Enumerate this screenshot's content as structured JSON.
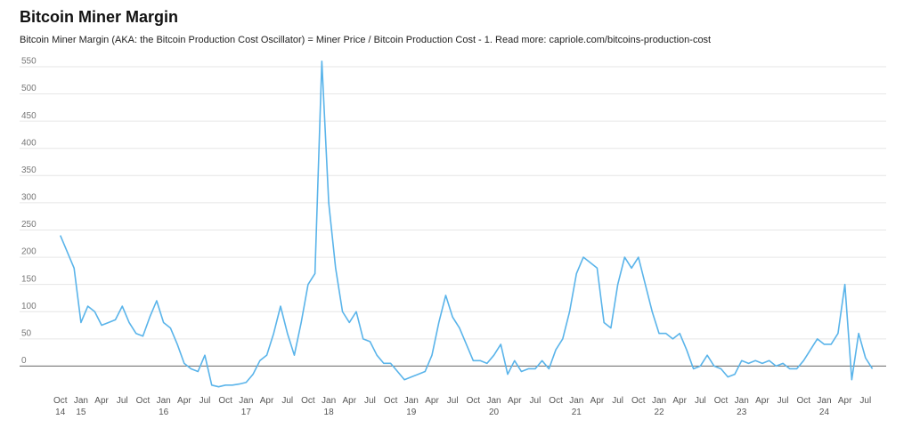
{
  "chart_data": {
    "type": "line",
    "title": "Bitcoin Miner Margin",
    "subtitle": "Bitcoin Miner Margin (AKA: the Bitcoin Production Cost Oscillator) = Miner Price / Bitcoin Production Cost - 1. Read more: capriole.com/bitcoins-production-cost",
    "x": [
      "2014-10",
      "2014-11",
      "2014-12",
      "2015-01",
      "2015-02",
      "2015-03",
      "2015-04",
      "2015-05",
      "2015-06",
      "2015-07",
      "2015-08",
      "2015-09",
      "2015-10",
      "2015-11",
      "2015-12",
      "2016-01",
      "2016-02",
      "2016-03",
      "2016-04",
      "2016-05",
      "2016-06",
      "2016-07",
      "2016-08",
      "2016-09",
      "2016-10",
      "2016-11",
      "2016-12",
      "2017-01",
      "2017-02",
      "2017-03",
      "2017-04",
      "2017-05",
      "2017-06",
      "2017-07",
      "2017-08",
      "2017-09",
      "2017-10",
      "2017-11",
      "2017-12",
      "2018-01",
      "2018-02",
      "2018-03",
      "2018-04",
      "2018-05",
      "2018-06",
      "2018-07",
      "2018-08",
      "2018-09",
      "2018-10",
      "2018-11",
      "2018-12",
      "2019-01",
      "2019-02",
      "2019-03",
      "2019-04",
      "2019-05",
      "2019-06",
      "2019-07",
      "2019-08",
      "2019-09",
      "2019-10",
      "2019-11",
      "2019-12",
      "2020-01",
      "2020-02",
      "2020-03",
      "2020-04",
      "2020-05",
      "2020-06",
      "2020-07",
      "2020-08",
      "2020-09",
      "2020-10",
      "2020-11",
      "2020-12",
      "2021-01",
      "2021-02",
      "2021-03",
      "2021-04",
      "2021-05",
      "2021-06",
      "2021-07",
      "2021-08",
      "2021-09",
      "2021-10",
      "2021-11",
      "2021-12",
      "2022-01",
      "2022-02",
      "2022-03",
      "2022-04",
      "2022-05",
      "2022-06",
      "2022-07",
      "2022-08",
      "2022-09",
      "2022-10",
      "2022-11",
      "2022-12",
      "2023-01",
      "2023-02",
      "2023-03",
      "2023-04",
      "2023-05",
      "2023-06",
      "2023-07",
      "2023-08",
      "2023-09",
      "2023-10",
      "2023-11",
      "2023-12",
      "2024-01",
      "2024-02",
      "2024-03",
      "2024-04",
      "2024-05",
      "2024-06",
      "2024-07",
      "2024-08"
    ],
    "series": [
      {
        "name": "Bitcoin Miner Margin",
        "color": "#5ab4ea",
        "values": [
          240,
          210,
          180,
          80,
          110,
          100,
          75,
          80,
          85,
          110,
          80,
          60,
          55,
          90,
          120,
          80,
          70,
          40,
          5,
          -5,
          -10,
          20,
          -35,
          -38,
          -35,
          -35,
          -33,
          -30,
          -15,
          10,
          20,
          60,
          110,
          60,
          20,
          80,
          150,
          170,
          560,
          300,
          180,
          100,
          80,
          100,
          50,
          45,
          20,
          5,
          5,
          -10,
          -25,
          -20,
          -15,
          -10,
          20,
          80,
          130,
          90,
          70,
          40,
          10,
          10,
          5,
          20,
          40,
          -15,
          10,
          -10,
          -5,
          -5,
          10,
          -5,
          30,
          50,
          100,
          170,
          200,
          190,
          180,
          80,
          70,
          150,
          200,
          180,
          200,
          150,
          100,
          60,
          60,
          50,
          60,
          30,
          -5,
          0,
          20,
          0,
          -5,
          -20,
          -15,
          10,
          5,
          10,
          5,
          10,
          0,
          5,
          -5,
          -5,
          10,
          30,
          50,
          40,
          40,
          60,
          150,
          -25,
          60,
          15,
          -5
        ]
      }
    ],
    "xlim": [
      "2014-09",
      "2024-10"
    ],
    "xticks": [
      {
        "value": "2014-10",
        "label": "Oct 14"
      },
      {
        "value": "2015-01",
        "label": "Jan 15"
      },
      {
        "value": "2015-04",
        "label": "Apr"
      },
      {
        "value": "2015-07",
        "label": "Jul"
      },
      {
        "value": "2015-10",
        "label": "Oct"
      },
      {
        "value": "2016-01",
        "label": "Jan 16"
      },
      {
        "value": "2016-04",
        "label": "Apr"
      },
      {
        "value": "2016-07",
        "label": "Jul"
      },
      {
        "value": "2016-10",
        "label": "Oct"
      },
      {
        "value": "2017-01",
        "label": "Jan 17"
      },
      {
        "value": "2017-04",
        "label": "Apr"
      },
      {
        "value": "2017-07",
        "label": "Jul"
      },
      {
        "value": "2017-10",
        "label": "Oct"
      },
      {
        "value": "2018-01",
        "label": "Jan 18"
      },
      {
        "value": "2018-04",
        "label": "Apr"
      },
      {
        "value": "2018-07",
        "label": "Jul"
      },
      {
        "value": "2018-10",
        "label": "Oct"
      },
      {
        "value": "2019-01",
        "label": "Jan 19"
      },
      {
        "value": "2019-04",
        "label": "Apr"
      },
      {
        "value": "2019-07",
        "label": "Jul"
      },
      {
        "value": "2019-10",
        "label": "Oct"
      },
      {
        "value": "2020-01",
        "label": "Jan 20"
      },
      {
        "value": "2020-04",
        "label": "Apr"
      },
      {
        "value": "2020-07",
        "label": "Jul"
      },
      {
        "value": "2020-10",
        "label": "Oct"
      },
      {
        "value": "2021-01",
        "label": "Jan 21"
      },
      {
        "value": "2021-04",
        "label": "Apr"
      },
      {
        "value": "2021-07",
        "label": "Jul"
      },
      {
        "value": "2021-10",
        "label": "Oct"
      },
      {
        "value": "2022-01",
        "label": "Jan 22"
      },
      {
        "value": "2022-04",
        "label": "Apr"
      },
      {
        "value": "2022-07",
        "label": "Jul"
      },
      {
        "value": "2022-10",
        "label": "Oct"
      },
      {
        "value": "2023-01",
        "label": "Jan 23"
      },
      {
        "value": "2023-04",
        "label": "Apr"
      },
      {
        "value": "2023-07",
        "label": "Jul"
      },
      {
        "value": "2023-10",
        "label": "Oct"
      },
      {
        "value": "2024-01",
        "label": "Jan 24"
      },
      {
        "value": "2024-04",
        "label": "Apr"
      },
      {
        "value": "2024-07",
        "label": "Jul"
      }
    ],
    "ylim": [
      -50,
      580
    ],
    "yticks": [
      0,
      50,
      100,
      150,
      200,
      250,
      300,
      350,
      400,
      450,
      500,
      550
    ],
    "grid": true
  }
}
